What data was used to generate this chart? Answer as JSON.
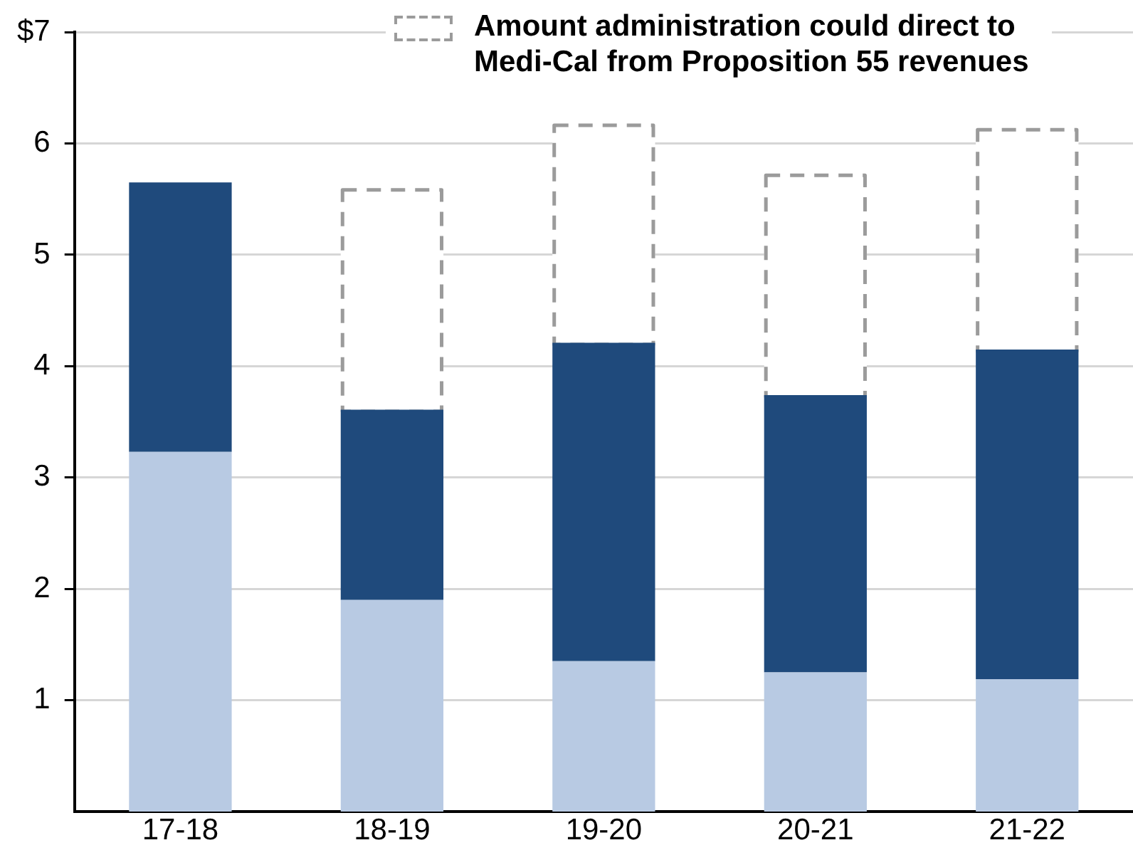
{
  "chart_data": {
    "type": "bar",
    "categories": [
      "17-18",
      "18-19",
      "19-20",
      "20-21",
      "21-22"
    ],
    "stacked": true,
    "series": [
      {
        "color": "#b8cae3",
        "values": [
          3.23,
          1.9,
          1.35,
          1.25,
          1.19
        ]
      },
      {
        "color": "#1f4a7c",
        "values": [
          2.42,
          1.71,
          2.86,
          2.49,
          2.96
        ]
      },
      {
        "name": "Amount administration could direct to Medi-Cal from Proposition 55 revenues",
        "color": "#9b9b9b",
        "line_style": "dashed",
        "values": [
          null,
          1.99,
          1.97,
          1.99,
          1.99
        ]
      }
    ],
    "ylim": [
      0,
      7
    ],
    "yticks": [
      1,
      2,
      3,
      4,
      5,
      6,
      {
        "value": 7,
        "label": "$7"
      }
    ],
    "grid": "y",
    "legend": "top right"
  }
}
